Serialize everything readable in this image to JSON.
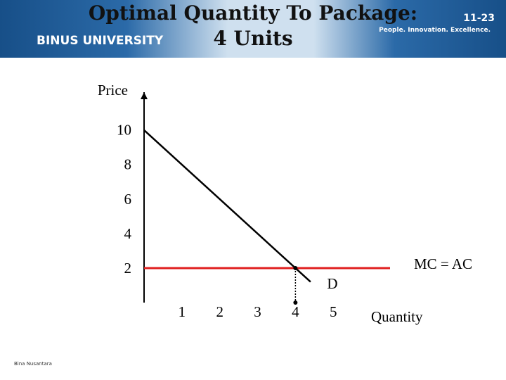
{
  "header": {
    "logo": "BINUS UNIVERSITY",
    "tagline": "People. Innovation. Excellence.",
    "slide_number": "11-23",
    "title_line1": "Optimal Quantity To Package:",
    "title_line2": "4 Units"
  },
  "footer": "Bina Nusantara",
  "chart_data": {
    "type": "line",
    "ylabel": "Price",
    "xlabel": "Quantity",
    "xlim": [
      0,
      6.5
    ],
    "ylim": [
      0,
      12.2
    ],
    "xticks": [
      1,
      2,
      3,
      4,
      5
    ],
    "yticks": [
      10,
      8,
      6,
      4,
      2
    ],
    "series": [
      {
        "name": "D",
        "color": "#000000",
        "x": [
          0,
          4.4
        ],
        "values": [
          10,
          1.2
        ]
      },
      {
        "name": "MC = AC",
        "color": "#e02020",
        "x": [
          0,
          6.5
        ],
        "values": [
          2,
          2
        ]
      }
    ],
    "point": {
      "x": 4,
      "y": 2
    }
  }
}
